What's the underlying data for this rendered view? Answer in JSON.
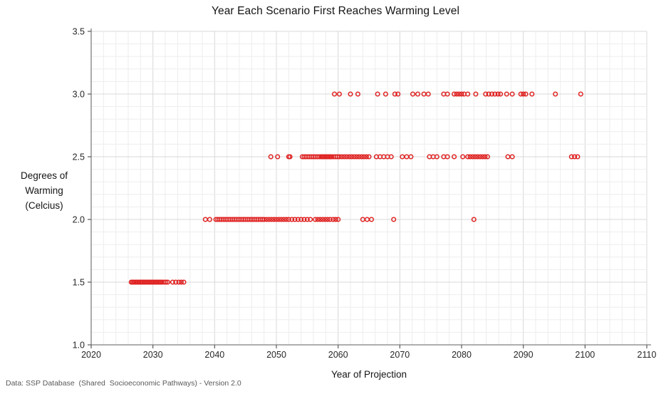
{
  "footer": "Data: SSP Database  (Shared  Socioeconomic Pathways) - Version 2.0",
  "chart_data": {
    "type": "scatter",
    "title": "Year Each Scenario First Reaches Warming Level",
    "xlabel": "Year of Projection",
    "ylabel_lines": [
      "Degrees of",
      "Warming",
      "(Celcius)"
    ],
    "xlim": [
      2020,
      2110
    ],
    "ylim": [
      1.0,
      3.5
    ],
    "x_ticks": [
      2020,
      2030,
      2040,
      2050,
      2060,
      2070,
      2080,
      2090,
      2100,
      2110
    ],
    "y_ticks": [
      1.0,
      1.5,
      2.0,
      2.5,
      3.0,
      3.5
    ],
    "y_tick_labels": [
      "1.0",
      "1.5",
      "2.0",
      "2.5",
      "3.0",
      "3.5"
    ],
    "x_minor_step": 2,
    "y_minor_step": 0.1,
    "grid": true,
    "legend": "none",
    "marker": {
      "shape": "circle-open",
      "color": "#E02222",
      "radius": 2.8,
      "stroke_width": 1.5
    },
    "colors": {
      "grid_minor": "#EDEDED",
      "grid_major": "#D8D8D8",
      "axis": "#7F7F7F",
      "tick": "#595959",
      "tick_label": "#262626"
    },
    "series": [
      {
        "name": "1.5 C",
        "y": 1.5,
        "years": [
          2026.5,
          2026.7,
          2026.9,
          2027.1,
          2027.3,
          2027.5,
          2027.7,
          2027.9,
          2028.1,
          2028.3,
          2028.5,
          2028.7,
          2028.9,
          2029.1,
          2029.3,
          2029.5,
          2029.7,
          2029.9,
          2030.1,
          2030.3,
          2030.5,
          2030.7,
          2030.9,
          2031.1,
          2031.3,
          2031.5,
          2031.8,
          2032.1,
          2032.4,
          2033.2,
          2033.7,
          2034.2,
          2034.6,
          2035.0
        ]
      },
      {
        "name": "2.0 C",
        "y": 2.0,
        "years": [
          2038.5,
          2039.2,
          2040.2,
          2040.5,
          2040.8,
          2041.1,
          2041.4,
          2041.7,
          2042.0,
          2042.3,
          2042.6,
          2042.9,
          2043.2,
          2043.5,
          2043.8,
          2044.1,
          2044.4,
          2044.7,
          2045.0,
          2045.3,
          2045.6,
          2045.9,
          2046.2,
          2046.5,
          2046.8,
          2047.1,
          2047.4,
          2047.7,
          2048.0,
          2048.4,
          2048.8,
          2049.2,
          2049.6,
          2050.0,
          2050.4,
          2050.8,
          2051.2,
          2051.6,
          2052.0,
          2052.5,
          2053.0,
          2053.5,
          2054.0,
          2054.5,
          2055.0,
          2055.5,
          2056.3,
          2056.7,
          2057.1,
          2057.5,
          2057.9,
          2058.3,
          2058.7,
          2059.2,
          2059.6,
          2060.0,
          2064.0,
          2064.7,
          2065.4,
          2069.0,
          2082.0
        ]
      },
      {
        "name": "2.5 C",
        "y": 2.5,
        "years": [
          2049.1,
          2050.2,
          2052.0,
          2052.2,
          2054.2,
          2054.5,
          2054.8,
          2055.1,
          2055.4,
          2055.7,
          2056.0,
          2056.3,
          2056.6,
          2056.9,
          2057.2,
          2057.4,
          2057.6,
          2057.8,
          2058.0,
          2058.2,
          2058.4,
          2058.6,
          2058.8,
          2059.0,
          2059.3,
          2059.6,
          2059.9,
          2060.2,
          2060.6,
          2061.0,
          2061.4,
          2061.8,
          2062.2,
          2062.6,
          2063.0,
          2063.4,
          2063.8,
          2064.2,
          2064.6,
          2065.0,
          2066.2,
          2066.8,
          2067.4,
          2068.0,
          2068.6,
          2070.4,
          2071.1,
          2071.8,
          2074.8,
          2075.4,
          2076.0,
          2077.1,
          2077.7,
          2078.8,
          2080.2,
          2081.0,
          2081.4,
          2081.8,
          2082.2,
          2082.6,
          2083.0,
          2083.4,
          2083.8,
          2084.2,
          2087.5,
          2088.2,
          2097.8,
          2098.3,
          2098.8
        ]
      },
      {
        "name": "3.0 C",
        "y": 3.0,
        "years": [
          2059.4,
          2060.2,
          2062.0,
          2063.2,
          2066.4,
          2067.7,
          2069.2,
          2069.7,
          2072.1,
          2072.9,
          2073.9,
          2074.6,
          2077.1,
          2077.7,
          2078.8,
          2079.2,
          2079.6,
          2080.0,
          2080.4,
          2081.0,
          2082.3,
          2083.9,
          2084.4,
          2084.9,
          2085.4,
          2085.9,
          2086.3,
          2087.3,
          2088.2,
          2089.6,
          2090.0,
          2090.4,
          2091.4,
          2095.2,
          2099.3
        ]
      }
    ]
  }
}
